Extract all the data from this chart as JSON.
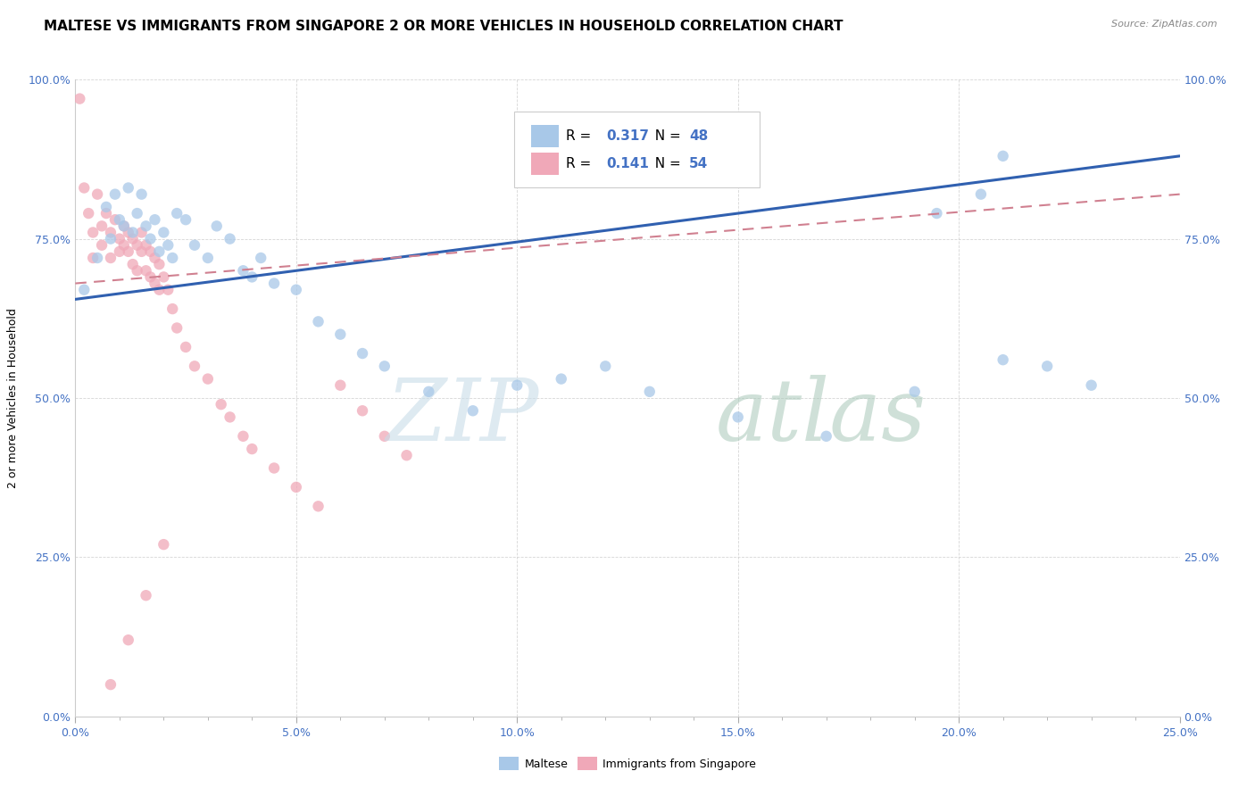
{
  "title": "MALTESE VS IMMIGRANTS FROM SINGAPORE 2 OR MORE VEHICLES IN HOUSEHOLD CORRELATION CHART",
  "source_text": "Source: ZipAtlas.com",
  "ylabel": "2 or more Vehicles in Household",
  "xticklabels": [
    "0.0%",
    "5.0%",
    "10.0%",
    "15.0%",
    "20.0%",
    "25.0%"
  ],
  "yticklabels": [
    "0.0%",
    "25.0%",
    "50.0%",
    "75.0%",
    "100.0%"
  ],
  "xlim": [
    0,
    0.25
  ],
  "ylim": [
    0,
    1.0
  ],
  "blue_scatter_x": [
    0.002,
    0.005,
    0.007,
    0.008,
    0.009,
    0.01,
    0.011,
    0.012,
    0.013,
    0.014,
    0.015,
    0.016,
    0.017,
    0.018,
    0.019,
    0.02,
    0.021,
    0.022,
    0.023,
    0.025,
    0.027,
    0.03,
    0.032,
    0.035,
    0.038,
    0.04,
    0.042,
    0.045,
    0.05,
    0.055,
    0.06,
    0.065,
    0.07,
    0.08,
    0.09,
    0.1,
    0.11,
    0.12,
    0.13,
    0.15,
    0.17,
    0.19,
    0.21,
    0.22,
    0.23,
    0.195,
    0.205,
    0.21
  ],
  "blue_scatter_y": [
    0.67,
    0.72,
    0.8,
    0.75,
    0.82,
    0.78,
    0.77,
    0.83,
    0.76,
    0.79,
    0.82,
    0.77,
    0.75,
    0.78,
    0.73,
    0.76,
    0.74,
    0.72,
    0.79,
    0.78,
    0.74,
    0.72,
    0.77,
    0.75,
    0.7,
    0.69,
    0.72,
    0.68,
    0.67,
    0.62,
    0.6,
    0.57,
    0.55,
    0.51,
    0.48,
    0.52,
    0.53,
    0.55,
    0.51,
    0.47,
    0.44,
    0.51,
    0.56,
    0.55,
    0.52,
    0.79,
    0.82,
    0.88
  ],
  "pink_scatter_x": [
    0.001,
    0.002,
    0.003,
    0.004,
    0.004,
    0.005,
    0.006,
    0.006,
    0.007,
    0.008,
    0.008,
    0.009,
    0.01,
    0.01,
    0.011,
    0.011,
    0.012,
    0.012,
    0.013,
    0.013,
    0.014,
    0.014,
    0.015,
    0.015,
    0.016,
    0.016,
    0.017,
    0.017,
    0.018,
    0.018,
    0.019,
    0.019,
    0.02,
    0.021,
    0.022,
    0.023,
    0.025,
    0.027,
    0.03,
    0.033,
    0.035,
    0.038,
    0.04,
    0.045,
    0.05,
    0.055,
    0.06,
    0.065,
    0.07,
    0.075,
    0.008,
    0.012,
    0.016,
    0.02
  ],
  "pink_scatter_y": [
    0.97,
    0.83,
    0.79,
    0.76,
    0.72,
    0.82,
    0.77,
    0.74,
    0.79,
    0.76,
    0.72,
    0.78,
    0.75,
    0.73,
    0.77,
    0.74,
    0.76,
    0.73,
    0.75,
    0.71,
    0.74,
    0.7,
    0.76,
    0.73,
    0.74,
    0.7,
    0.73,
    0.69,
    0.72,
    0.68,
    0.71,
    0.67,
    0.69,
    0.67,
    0.64,
    0.61,
    0.58,
    0.55,
    0.53,
    0.49,
    0.47,
    0.44,
    0.42,
    0.39,
    0.36,
    0.33,
    0.52,
    0.48,
    0.44,
    0.41,
    0.05,
    0.12,
    0.19,
    0.27
  ],
  "blue_line_x": [
    0.0,
    0.25
  ],
  "blue_line_y": [
    0.655,
    0.88
  ],
  "pink_line_x": [
    0.0,
    0.25
  ],
  "pink_line_y": [
    0.68,
    0.82
  ],
  "blue_scatter_color": "#a8c8e8",
  "pink_scatter_color": "#f0a8b8",
  "trend_blue": "#3060b0",
  "trend_pink": "#d08090",
  "title_fontsize": 11,
  "axis_fontsize": 9,
  "legend_fontsize": 11,
  "R_blue": "0.317",
  "N_blue": "48",
  "R_pink": "0.141",
  "N_pink": "54"
}
